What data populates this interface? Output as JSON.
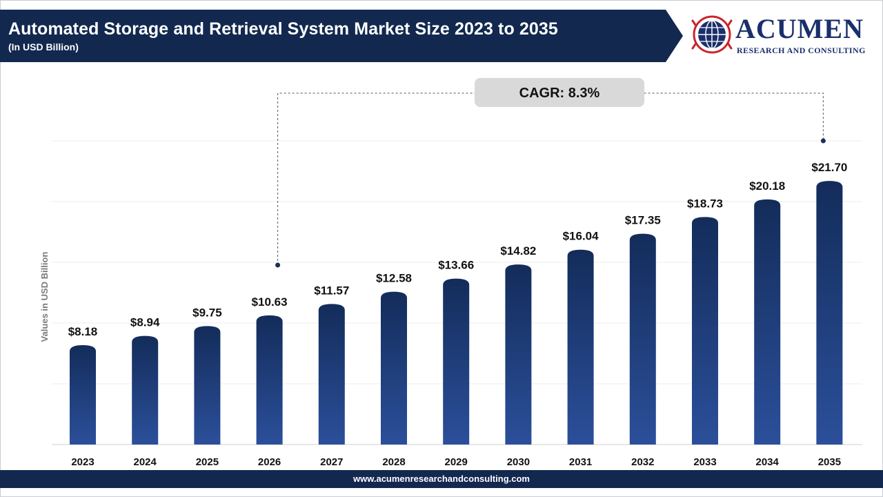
{
  "header": {
    "title": "Automated Storage and Retrieval System Market Size 2023 to 2035",
    "subtitle": "(In USD Billion)"
  },
  "logo": {
    "wordmark": "ACUMEN",
    "tagline": "RESEARCH AND CONSULTING",
    "icon": "globe-icon"
  },
  "footer": {
    "url": "www.acumenresearchandconsulting.com"
  },
  "colors": {
    "header": "#12284f",
    "bar_top": "#132c5a",
    "bar_bottom": "#2b4f9a",
    "cagr_box": "#d9d9d9"
  },
  "chart_data": {
    "type": "bar",
    "categories": [
      "2023",
      "2024",
      "2025",
      "2026",
      "2027",
      "2028",
      "2029",
      "2030",
      "2031",
      "2032",
      "2033",
      "2034",
      "2035"
    ],
    "values": [
      8.18,
      8.94,
      9.75,
      10.63,
      11.57,
      12.58,
      13.66,
      14.82,
      16.04,
      17.35,
      18.73,
      20.18,
      21.7
    ],
    "value_labels": [
      "$8.18",
      "$8.94",
      "$9.75",
      "$10.63",
      "$11.57",
      "$12.58",
      "$13.66",
      "$14.82",
      "$16.04",
      "$17.35",
      "$18.73",
      "$20.18",
      "$21.70"
    ],
    "ylabel": "Values in USD Billion",
    "xlabel": "",
    "ylim": [
      0,
      25
    ],
    "grid": true,
    "legend": "none",
    "annotation": {
      "text": "CAGR: 8.3%",
      "from_category": "2026",
      "to_category": "2035"
    }
  }
}
